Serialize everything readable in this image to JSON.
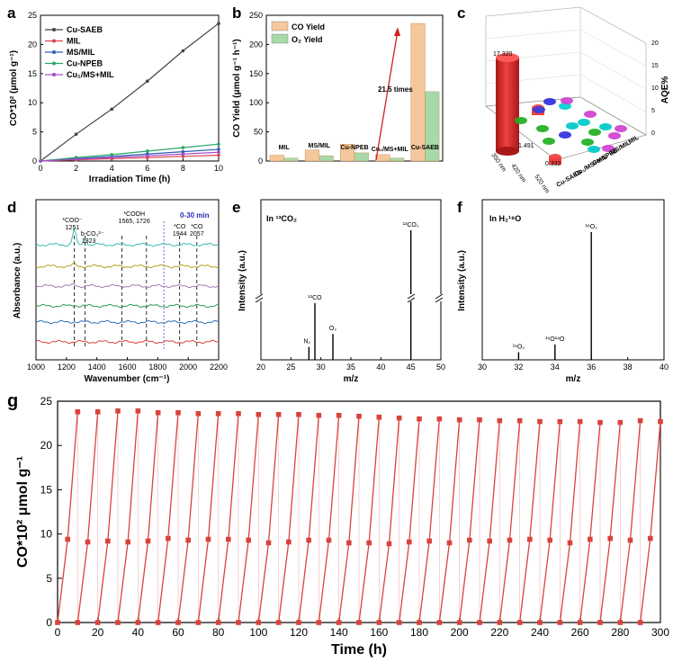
{
  "panels": {
    "a": "a",
    "b": "b",
    "c": "c",
    "d": "d",
    "e": "e",
    "f": "f",
    "g": "g"
  },
  "chart_data": [
    {
      "id": "a",
      "type": "line",
      "xlabel": "Irradiation Time (h)",
      "ylabel": "CO*10² (μmol g⁻¹)",
      "xlim": [
        0,
        10
      ],
      "ylim": [
        0,
        25
      ],
      "xticks": [
        "0",
        "2",
        "4",
        "6",
        "8",
        "10"
      ],
      "yticks": [
        "0",
        "5",
        "10",
        "15",
        "20",
        "25"
      ],
      "legend_position": "top-left",
      "series": [
        {
          "name": "Cu-SAEB",
          "color": "#444444",
          "x": [
            0,
            2,
            4,
            6,
            8,
            10
          ],
          "values": [
            0,
            4.6,
            8.9,
            13.7,
            18.9,
            23.6
          ]
        },
        {
          "name": "MIL",
          "color": "#e0434e",
          "x": [
            0,
            2,
            4,
            6,
            8,
            10
          ],
          "values": [
            0,
            0.2,
            0.4,
            0.6,
            0.8,
            1.0
          ]
        },
        {
          "name": "MS/MIL",
          "color": "#2f5fb5",
          "x": [
            0,
            2,
            4,
            6,
            8,
            10
          ],
          "values": [
            0,
            0.4,
            0.8,
            1.2,
            1.6,
            2.0
          ]
        },
        {
          "name": "Cu-NPEB",
          "color": "#2ca56a",
          "x": [
            0,
            2,
            4,
            6,
            8,
            10
          ],
          "values": [
            0,
            0.6,
            1.1,
            1.7,
            2.3,
            2.9
          ]
        },
        {
          "name": "Cu₁/MS+MIL",
          "color": "#a24fc7",
          "x": [
            0,
            2,
            4,
            6,
            8,
            10
          ],
          "values": [
            0,
            0.3,
            0.6,
            0.9,
            1.2,
            1.5
          ]
        }
      ]
    },
    {
      "id": "b",
      "type": "bar",
      "ylabel": "CO Yield (μmol g⁻¹ h⁻¹)",
      "ylim": [
        0,
        250
      ],
      "yticks": [
        "0",
        "50",
        "100",
        "150",
        "200",
        "250"
      ],
      "categories": [
        "MIL",
        "MS/MIL",
        "Cu-NPEB",
        "Cu₁/MS+MIL",
        "Cu-SAEB"
      ],
      "legend_position": "top-left",
      "series": [
        {
          "name": "CO Yield",
          "color": "#f4c79c",
          "values": [
            10,
            19,
            29,
            11,
            236
          ]
        },
        {
          "name": "O₂ Yield",
          "color": "#a8d9a8",
          "values": [
            5,
            9,
            14,
            5,
            119
          ]
        }
      ],
      "annotation": "21.5 times"
    },
    {
      "id": "c",
      "type": "bar",
      "zlabel": "AQE%",
      "zlim": [
        0,
        20
      ],
      "zticks": [
        "0",
        "5",
        "10",
        "15",
        "20"
      ],
      "wavelengths": [
        "350 nm",
        "420 nm",
        "520 nm"
      ],
      "catalysts": [
        "MIL",
        "MS/MIL",
        "Cu-NPEB",
        "Cu₁/MS+MIL",
        "Cu-SAEB"
      ],
      "values_Cu_SAEB": [
        17.32,
        1.491,
        0.332
      ],
      "value_labels": [
        "17.320",
        "1.491",
        "0.332"
      ]
    },
    {
      "id": "d",
      "type": "line",
      "xlabel": "Wavenumber (cm⁻¹)",
      "ylabel": "Absorbance (a.u.)",
      "xlim": [
        1000,
        2200
      ],
      "xticks": [
        "1000",
        "1200",
        "1400",
        "1600",
        "1800",
        "2000",
        "2200"
      ],
      "series_label": "0-30 min",
      "peaks": [
        {
          "label": "*COO⁻",
          "sub": "1251",
          "x": 1251
        },
        {
          "label": "b-CO₃²⁻",
          "sub": "1323",
          "x": 1323
        },
        {
          "label": "*COOH",
          "sub": "1565, 1726",
          "x": 1565,
          "x2": 1726
        },
        {
          "label": "*CO",
          "sub": "1944",
          "x": 1944
        },
        {
          "label": "*CO",
          "sub": "2057",
          "x": 2057
        }
      ],
      "trace_colors": [
        "#3cb8b0",
        "#b8a020",
        "#a07ab8",
        "#2a9a5a",
        "#2e6fb8",
        "#d9433c"
      ]
    },
    {
      "id": "e",
      "type": "bar",
      "title": "In ¹³CO₂",
      "xlabel": "m/z",
      "ylabel": "Intensity (a.u.)",
      "xlim": [
        20,
        50
      ],
      "xticks": [
        "20",
        "25",
        "30",
        "35",
        "40",
        "45",
        "50"
      ],
      "peaks": [
        {
          "x": 28,
          "value": 0.08,
          "label": "N₂"
        },
        {
          "x": 29,
          "value": 0.35,
          "label": "¹³CO"
        },
        {
          "x": 32,
          "value": 0.16,
          "label": "O₂"
        },
        {
          "x": 45,
          "value": 1.0,
          "label": "¹³CO₂"
        }
      ]
    },
    {
      "id": "f",
      "type": "bar",
      "title": "In H₂¹⁸O",
      "xlabel": "m/z",
      "ylabel": "Intensity (a.u.)",
      "xlim": [
        30,
        40
      ],
      "xticks": [
        "30",
        "32",
        "34",
        "36",
        "38",
        "40"
      ],
      "peaks": [
        {
          "x": 32,
          "value": 0.06,
          "label": "¹⁶O₂"
        },
        {
          "x": 34,
          "value": 0.12,
          "label": "¹⁶O¹⁸O"
        },
        {
          "x": 36,
          "value": 1.0,
          "label": "¹⁸O₂"
        }
      ]
    },
    {
      "id": "g",
      "type": "line",
      "xlabel": "Time (h)",
      "ylabel": "CO*10² μmol g⁻¹",
      "xlim": [
        0,
        300
      ],
      "ylim": [
        0,
        25
      ],
      "xticks": [
        "0",
        "20",
        "40",
        "60",
        "80",
        "100",
        "120",
        "140",
        "160",
        "180",
        "200",
        "220",
        "240",
        "260",
        "280",
        "300"
      ],
      "yticks": [
        "0",
        "5",
        "10",
        "15",
        "20",
        "25"
      ],
      "color": "#d9433c",
      "cycle_length_h": 10,
      "mid_values": [
        9.4,
        9.1,
        9.2,
        9.1,
        9.2,
        9.5,
        9.3,
        9.4,
        9.4,
        9.3,
        9.0,
        9.1,
        9.3,
        9.3,
        9.0,
        9.0,
        8.9,
        9.1,
        9.2,
        9.0,
        9.3,
        9.2,
        9.3,
        9.4,
        9.3,
        9.0,
        9.4,
        9.5,
        9.3,
        9.5
      ],
      "end_values": [
        23.8,
        23.8,
        23.9,
        23.9,
        23.7,
        23.7,
        23.6,
        23.6,
        23.6,
        23.5,
        23.5,
        23.5,
        23.4,
        23.4,
        23.3,
        23.2,
        23.1,
        23.0,
        23.0,
        22.9,
        22.9,
        22.8,
        22.8,
        22.7,
        22.7,
        22.7,
        22.6,
        22.6,
        22.8,
        22.7
      ]
    }
  ]
}
